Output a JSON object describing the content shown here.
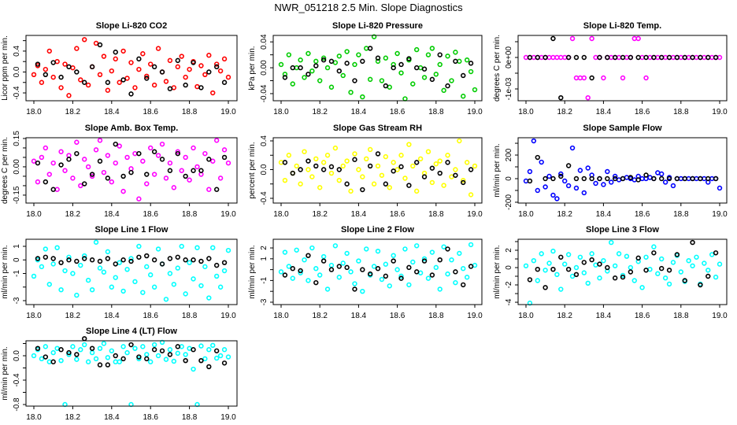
{
  "title": "NWR_051218  2.5 Min. Slope Diagnostics",
  "chart_data": {
    "type": "scatter",
    "x_ticks": [
      "18.0",
      "18.2",
      "18.4",
      "18.6",
      "18.8",
      "19.0"
    ],
    "xlim": [
      18.0,
      19.0
    ],
    "grid": false,
    "x_colored": [
      18.0,
      18.02,
      18.04,
      18.06,
      18.08,
      18.1,
      18.12,
      18.14,
      18.16,
      18.18,
      18.2,
      18.22,
      18.24,
      18.26,
      18.28,
      18.3,
      18.32,
      18.34,
      18.36,
      18.38,
      18.4,
      18.42,
      18.44,
      18.46,
      18.48,
      18.5,
      18.52,
      18.54,
      18.56,
      18.58,
      18.6,
      18.62,
      18.64,
      18.66,
      18.68,
      18.7,
      18.72,
      18.74,
      18.76,
      18.78,
      18.8,
      18.82,
      18.84,
      18.86,
      18.88,
      18.9,
      18.92,
      18.94,
      18.96,
      18.98,
      19.0
    ],
    "x_black": [
      18.02,
      18.06,
      18.1,
      18.14,
      18.18,
      18.22,
      18.26,
      18.3,
      18.34,
      18.38,
      18.42,
      18.46,
      18.5,
      18.54,
      18.58,
      18.62,
      18.66,
      18.7,
      18.74,
      18.78,
      18.82,
      18.86,
      18.9,
      18.94,
      18.98
    ],
    "panels": [
      {
        "title": "Slope Li-820 CO2",
        "ylabel": "Licor ppm per min.",
        "color": "#ff0000",
        "ylim": [
          -0.55,
          0.7
        ],
        "yticks": [
          -0.4,
          -0.2,
          0,
          0.2,
          0.4,
          0.6
        ],
        "ytick_labels": [
          "-0.4",
          "",
          "0.0",
          "",
          "0.4",
          ""
        ],
        "colored": [
          -0.05,
          0.12,
          -0.2,
          0.05,
          0.4,
          -0.1,
          0.2,
          -0.3,
          0.15,
          -0.45,
          0.08,
          0.45,
          -0.15,
          0.62,
          -0.25,
          0.1,
          0.55,
          -0.05,
          0.3,
          -0.35,
          0.02,
          0.25,
          -0.2,
          0.4,
          -0.12,
          0.18,
          -0.3,
          0.05,
          0.35,
          -0.08,
          0.15,
          -0.25,
          0.45,
          0.0,
          -0.18,
          0.22,
          -0.3,
          0.1,
          0.3,
          -0.1,
          0.05,
          0.2,
          -0.28,
          0.12,
          -0.05,
          0.32,
          -0.4,
          0.15,
          0.02,
          0.25,
          -0.1
        ],
        "black": [
          0.15,
          -0.05,
          0.18,
          -0.1,
          0.1,
          0.0,
          -0.2,
          0.1,
          0.52,
          -0.2,
          0.38,
          -0.15,
          -0.42,
          0.25,
          -0.12,
          0.1,
          0.0,
          -0.32,
          0.22,
          -0.25,
          0.18,
          -0.3,
          0.0,
          0.1,
          -0.2
        ]
      },
      {
        "title": "Slope Li-820 Pressure",
        "ylabel": "kPa per min.",
        "color": "#00cc00",
        "ylim": [
          -0.051,
          0.05
        ],
        "yticks": [
          -0.04,
          -0.02,
          0,
          0.02,
          0.04
        ],
        "ytick_labels": [
          "-0.04",
          "",
          "0.00",
          "",
          "0.04"
        ],
        "colored": [
          0.005,
          -0.01,
          0.02,
          -0.025,
          0.0,
          0.012,
          -0.015,
          0.022,
          -0.005,
          0.01,
          -0.02,
          0.015,
          0.0,
          -0.03,
          0.008,
          0.018,
          -0.012,
          0.025,
          -0.038,
          0.005,
          0.02,
          -0.045,
          0.03,
          -0.018,
          0.048,
          0.01,
          -0.02,
          0.015,
          -0.03,
          0.005,
          0.022,
          -0.008,
          -0.048,
          0.012,
          -0.025,
          0.028,
          0.0,
          -0.015,
          0.02,
          0.03,
          -0.01,
          0.005,
          -0.035,
          0.018,
          -0.02,
          0.024,
          0.01,
          -0.044,
          0.012,
          -0.006,
          -0.034
        ],
        "black": [
          -0.015,
          0.0,
          0.0,
          -0.01,
          0.003,
          0.012,
          0.01,
          -0.005,
          0.007,
          -0.02,
          0.01,
          0.03,
          0.015,
          -0.028,
          0.0,
          0.005,
          0.014,
          0.0,
          -0.002,
          -0.018,
          0.02,
          -0.028,
          0.01,
          -0.012,
          0.007
        ]
      },
      {
        "title": "Slope Li-820 Temp.",
        "ylabel": "degrees C per min.",
        "color": "#ff00ff",
        "ylim": [
          -0.001375,
          0.0007
        ],
        "yticks": [
          -0.001,
          -0.0005,
          0,
          0.0005
        ],
        "ytick_labels": [
          "-1e-03",
          "",
          "0e+00",
          ""
        ],
        "colored": [
          0,
          0,
          0,
          0,
          0,
          0,
          0,
          0,
          0,
          0,
          0,
          0,
          0.0006,
          -0.00065,
          -0.00065,
          -0.00065,
          -0.00128,
          0.0006,
          0,
          0,
          -0.00065,
          0,
          0,
          0,
          0,
          -0.00065,
          0,
          0,
          0.0006,
          0.0006,
          0,
          -0.00065,
          0,
          0,
          0,
          0,
          0,
          0,
          0,
          0,
          0,
          0,
          0,
          0,
          0,
          0,
          0,
          0,
          0,
          0,
          0
        ],
        "black": [
          0,
          0,
          0,
          0.0006,
          -0.00128,
          0,
          0,
          0,
          -0.00065,
          0,
          0,
          0,
          0,
          0,
          0,
          0,
          0,
          0,
          0,
          0,
          0,
          0,
          0,
          0,
          0
        ]
      },
      {
        "title": "Slope Amb. Box Temp.",
        "ylabel": "degrees C per min.",
        "color": "#ff00ff",
        "ylim": [
          -0.192,
          0.154
        ],
        "yticks": [
          -0.15,
          -0.1,
          -0.05,
          0,
          0.05,
          0.1,
          0.15
        ],
        "ytick_labels": [
          "-0.15",
          "",
          "",
          "0.00",
          "",
          "",
          "0.15"
        ],
        "colored": [
          0.03,
          -0.08,
          0.05,
          0.1,
          -0.04,
          0.02,
          -0.12,
          0.08,
          -0.02,
          0.06,
          -0.06,
          0.13,
          -0.1,
          0.04,
          0.0,
          -0.05,
          0.09,
          0.14,
          -0.03,
          0.06,
          -0.08,
          0.02,
          0.11,
          -0.13,
          0.05,
          -0.01,
          0.07,
          -0.17,
          0.03,
          -0.09,
          0.1,
          -0.04,
          0.06,
          0.12,
          -0.06,
          0.02,
          -0.11,
          0.08,
          -0.02,
          0.05,
          -0.07,
          0.1,
          0.0,
          -0.04,
          0.07,
          -0.12,
          0.03,
          0.14,
          -0.06,
          0.09,
          0.02
        ],
        "black": [
          0.02,
          -0.08,
          -0.12,
          0.01,
          0.04,
          0.07,
          -0.09,
          -0.04,
          0.03,
          -0.06,
          0.12,
          -0.05,
          -0.03,
          0.07,
          -0.04,
          0.08,
          0.04,
          -0.02,
          0.07,
          -0.05,
          -0.02,
          -0.02,
          0.04,
          -0.12,
          0.05
        ]
      },
      {
        "title": "Slope Gas Stream RH",
        "ylabel": "percent per min.",
        "color": "#ffff00",
        "ylim": [
          -0.466,
          0.444
        ],
        "yticks": [
          -0.4,
          -0.2,
          0,
          0.2,
          0.4
        ],
        "ytick_labels": [
          "-0.4",
          "",
          "0.0",
          "",
          "0.4"
        ],
        "colored": [
          0.1,
          -0.15,
          0.2,
          -0.05,
          0.05,
          -0.2,
          0.25,
          0.0,
          -0.1,
          0.15,
          -0.25,
          0.1,
          0.2,
          -0.05,
          0.3,
          -0.15,
          0.05,
          0.12,
          -0.3,
          0.22,
          0.0,
          -0.1,
          0.15,
          0.28,
          -0.2,
          0.05,
          -0.08,
          0.18,
          -0.25,
          0.1,
          0.0,
          0.2,
          -0.12,
          0.35,
          0.05,
          -0.3,
          0.15,
          -0.05,
          0.25,
          -0.18,
          0.08,
          0.12,
          -0.22,
          0.2,
          -0.1,
          0.0,
          0.4,
          -0.15,
          0.1,
          -0.35,
          0.05
        ],
        "black": [
          0.1,
          -0.05,
          0.0,
          0.12,
          0.05,
          0.0,
          0.04,
          0.0,
          -0.2,
          0.14,
          -0.28,
          0.05,
          0.22,
          -0.2,
          -0.02,
          0.04,
          -0.22,
          0.1,
          -0.1,
          0.02,
          -0.05,
          0.1,
          -0.08,
          -0.18,
          0.0
        ]
      },
      {
        "title": "Slope Sample Flow",
        "ylabel": "ml/min per min.",
        "color": "#0000ff",
        "ylim": [
          -207,
          347
        ],
        "yticks": [
          -200,
          -100,
          0,
          100,
          200,
          300
        ],
        "ytick_labels": [
          "-200",
          "",
          "0",
          "",
          "200",
          ""
        ],
        "colored": [
          -20,
          60,
          320,
          -100,
          140,
          -70,
          20,
          -140,
          -170,
          40,
          -20,
          -60,
          260,
          -80,
          70,
          -120,
          90,
          30,
          -40,
          0,
          -50,
          60,
          -30,
          20,
          -10,
          0,
          10,
          0,
          -10,
          20,
          0,
          0,
          10,
          0,
          50,
          40,
          -30,
          10,
          -60,
          0,
          0,
          0,
          0,
          0,
          0,
          0,
          0,
          -30,
          0,
          0,
          -80
        ],
        "black": [
          -20,
          180,
          0,
          0,
          20,
          110,
          0,
          0,
          0,
          0,
          0,
          0,
          0,
          10,
          -10,
          30,
          0,
          0,
          0,
          0,
          0,
          0,
          0,
          0,
          0
        ]
      },
      {
        "title": "Slope Line 1 Flow",
        "ylabel": "ml/min per min.",
        "color": "#00ffff",
        "ylim": [
          -3.29,
          1.52
        ],
        "yticks": [
          -3,
          -2,
          -1,
          0,
          1
        ],
        "ytick_labels": [
          "-3",
          "",
          "-1",
          "0",
          "1"
        ],
        "colored": [
          -1.2,
          0.0,
          -0.5,
          0.8,
          -1.8,
          -0.3,
          0.9,
          -2.2,
          -0.8,
          0.2,
          -1.0,
          -2.6,
          -0.4,
          0.3,
          -1.5,
          -2.2,
          1.3,
          -0.6,
          -0.9,
          0.6,
          -2.0,
          -1.3,
          -0.2,
          -2.3,
          -0.7,
          0.1,
          -1.6,
          1.0,
          -2.4,
          -0.5,
          -1.1,
          -2.0,
          0.8,
          -0.3,
          -2.9,
          -1.0,
          -1.8,
          -0.6,
          1.0,
          -2.5,
          -0.2,
          -1.4,
          0.9,
          -1.9,
          -0.5,
          -2.8,
          0.9,
          -1.2,
          -2.0,
          -0.8,
          0.7
        ],
        "black": [
          0.1,
          0.2,
          0.1,
          -0.2,
          0.0,
          -0.1,
          0.1,
          0.0,
          -0.1,
          0.1,
          -0.3,
          0.0,
          -0.1,
          0.2,
          0.3,
          0.0,
          -0.3,
          0.1,
          0.2,
          0.0,
          0.0,
          -0.1,
          0.1,
          -0.4,
          -0.2
        ]
      },
      {
        "title": "Slope Line 2 Flow",
        "ylabel": "ml/min per min.",
        "color": "#00ffff",
        "ylim": [
          -3.22,
          2.8
        ],
        "yticks": [
          -3,
          -2,
          -1,
          0,
          1,
          2
        ],
        "ytick_labels": [
          "-3",
          "",
          "-1",
          "",
          "1",
          "2"
        ],
        "colored": [
          -0.2,
          1.6,
          0.3,
          -0.8,
          1.8,
          -0.3,
          0.9,
          -1.0,
          2.0,
          0.1,
          -0.5,
          1.2,
          -1.8,
          0.4,
          2.2,
          -0.7,
          0.6,
          1.5,
          -0.2,
          -1.3,
          0.8,
          -2.0,
          1.9,
          -0.5,
          0.3,
          1.7,
          -0.9,
          0.5,
          -1.5,
          1.3,
          0.0,
          -0.6,
          1.9,
          -1.4,
          0.7,
          2.2,
          -0.3,
          1.0,
          -0.8,
          1.6,
          0.2,
          -1.8,
          2.1,
          -0.4,
          0.9,
          -1.2,
          1.5,
          0.1,
          -0.7,
          2.3,
          0.4
        ],
        "black": [
          -0.5,
          0.1,
          -0.1,
          1.3,
          -1.2,
          0.8,
          0.0,
          0.3,
          0.2,
          -1.8,
          0.0,
          -0.4,
          0.1,
          -0.6,
          0.8,
          -0.8,
          0.2,
          -0.2,
          0.8,
          -0.5,
          0.9,
          1.9,
          -0.2,
          -1.4,
          0.3
        ]
      },
      {
        "title": "Slope Line 3 Flow",
        "ylabel": "ml/min per min.",
        "color": "#00ffff",
        "ylim": [
          -4.27,
          3.27
        ],
        "yticks": [
          -4,
          -3,
          -2,
          -1,
          0,
          1,
          2,
          3
        ],
        "ytick_labels": [
          "-4",
          "",
          "-2",
          "",
          "0",
          "",
          "2",
          ""
        ],
        "colored": [
          0.2,
          -4.1,
          0.8,
          -1.5,
          1.6,
          -0.3,
          0.5,
          1.9,
          -0.8,
          -2.5,
          0.4,
          1.5,
          -1.0,
          0.0,
          1.2,
          -0.6,
          -1.8,
          1.6,
          0.3,
          -1.2,
          0.8,
          -0.4,
          2.9,
          0.2,
          1.6,
          -0.9,
          1.3,
          0.0,
          -1.5,
          0.7,
          -2.3,
          1.2,
          -0.2,
          2.4,
          -0.7,
          1.0,
          -1.2,
          -1.9,
          0.6,
          1.4,
          -0.5,
          -1.6,
          0.8,
          0.2,
          1.2,
          -1.9,
          0.5,
          -0.3,
          1.5,
          -1.1,
          0.4
        ],
        "black": [
          -1.4,
          -0.2,
          -2.3,
          -0.2,
          1.2,
          -0.2,
          -0.8,
          0.6,
          0.9,
          0.4,
          0.0,
          -1.2,
          -1.1,
          -0.5,
          1.1,
          -0.3,
          1.7,
          -0.1,
          -0.3,
          1.5,
          -1.5,
          2.9,
          -2.0,
          -1.0,
          1.7
        ]
      },
      {
        "title": "Slope Line 4 (LT) Flow",
        "ylabel": "ml/min per min.",
        "color": "#00ffff",
        "ylim": [
          -0.826,
          0.245
        ],
        "yticks": [
          -0.8,
          -0.6,
          -0.4,
          -0.2,
          0,
          0.2
        ],
        "ytick_labels": [
          "-0.8",
          "",
          "-0.4",
          "",
          "0.0",
          ""
        ],
        "colored": [
          0.0,
          0.1,
          -0.05,
          0.15,
          -0.1,
          0.05,
          0.12,
          -0.08,
          -0.8,
          0.02,
          0.15,
          -0.06,
          0.1,
          0.18,
          -0.1,
          0.05,
          -0.05,
          0.12,
          0.2,
          -0.03,
          0.08,
          -0.1,
          -0.1,
          0.15,
          0.05,
          -0.8,
          0.12,
          -0.05,
          0.15,
          0.02,
          -0.1,
          0.18,
          0.0,
          0.22,
          -0.06,
          0.1,
          -0.09,
          0.04,
          0.15,
          0.02,
          0.12,
          -0.22,
          -0.8,
          0.16,
          -0.05,
          0.1,
          0.17,
          -0.04,
          0.0,
          0.1,
          -0.02
        ],
        "black": [
          0.12,
          -0.02,
          -0.1,
          0.1,
          0.05,
          0.02,
          0.28,
          0.12,
          -0.15,
          -0.15,
          0.0,
          -0.05,
          0.18,
          -0.02,
          -0.05,
          0.1,
          0.08,
          0.02,
          0.15,
          -0.08,
          0.1,
          -0.08,
          -0.18,
          0.08,
          -0.12
        ]
      }
    ]
  }
}
